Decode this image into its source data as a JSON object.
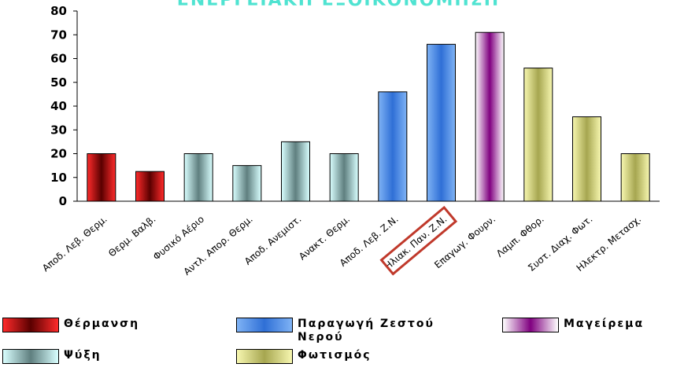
{
  "chart_data": {
    "type": "bar",
    "title": "ΕΝΕΡΓΕΙΑΚΗ ΕΞΟΙΚΟΝΟΜΗΣΗ",
    "xlabel": "",
    "ylabel": "",
    "ylim": [
      0,
      80
    ],
    "yticks": [
      0,
      10,
      20,
      30,
      40,
      50,
      60,
      70,
      80
    ],
    "grid": false,
    "legend_position": "bottom",
    "categories": [
      "Αποδ. Λεβ. Θερμ.",
      "Θερμ. Βαλβ.",
      "Φυσικό Αέριο",
      "Αντλ. Απορ. Θερμ.",
      "Αποδ. Ανεμιστ.",
      "Ανακτ. Θερμ.",
      "Αποδ. Λεβ. Ζ.Ν.",
      "Ηλιακ. Παν. Ζ.Ν.",
      "Επαγωγ. Φουρν.",
      "Λαμπ. Φθορ.",
      "Συστ. Διαχ. Φωτ.",
      "Ηλεκτρ. Μετασχ."
    ],
    "values": [
      20,
      12.5,
      20,
      15,
      25,
      20,
      46,
      66,
      71,
      56,
      35.5,
      20
    ],
    "bar_groups": [
      "heating",
      "heating",
      "cooling",
      "cooling",
      "cooling",
      "cooling",
      "hotwater",
      "hotwater",
      "cooking",
      "lighting",
      "lighting",
      "lighting"
    ],
    "highlighted_category": "Ηλιακ. Παν. Ζ.Ν.",
    "highlight_color": "#c0392b",
    "series": [
      {
        "key": "heating",
        "name": "Θέρμανση",
        "color_light": "#ff2b2b",
        "color_dark": "#5a0000"
      },
      {
        "key": "hotwater",
        "name": "Παραγωγή Ζεστού Νερού",
        "color_light": "#7fb3f5",
        "color_dark": "#2f6fd6"
      },
      {
        "key": "cooking",
        "name": "Μαγείρεμα",
        "color_light": "#ffffff",
        "color_dark": "#800080"
      },
      {
        "key": "cooling",
        "name": "Ψύξη",
        "color_light": "#d9ffff",
        "color_dark": "#5f7f7f"
      },
      {
        "key": "lighting",
        "name": "Φωτισμός",
        "color_light": "#f7f7b0",
        "color_dark": "#a6a650"
      }
    ]
  }
}
